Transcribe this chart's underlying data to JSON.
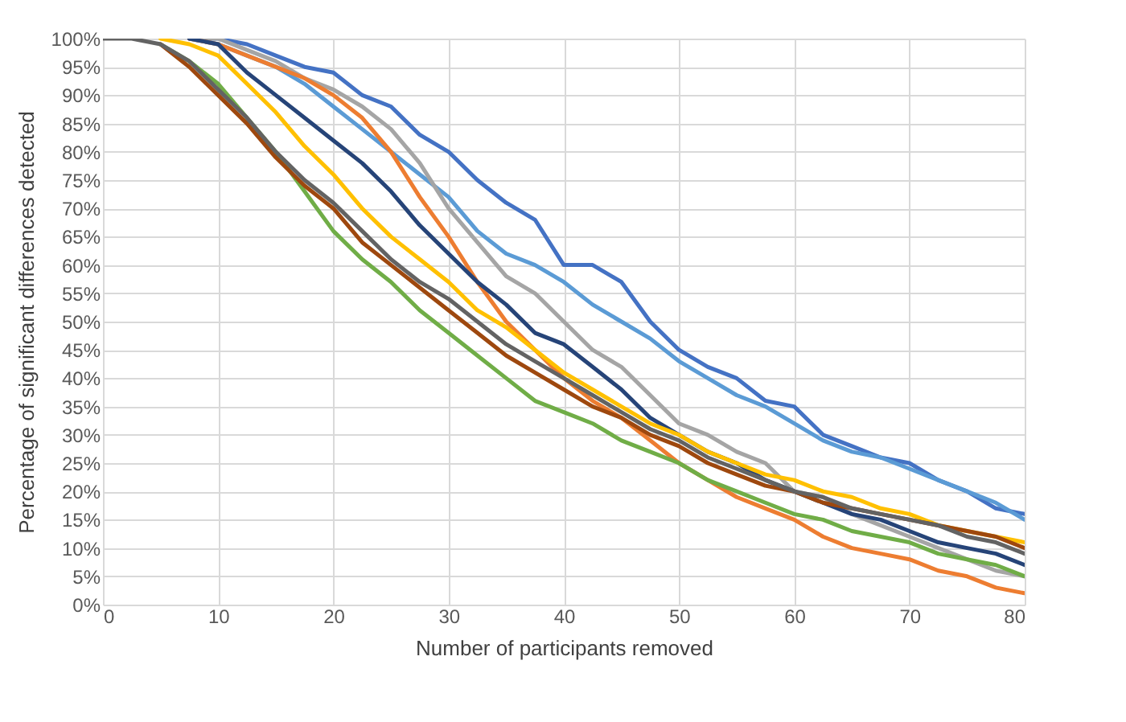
{
  "chart_data": {
    "type": "line",
    "xlabel": "Number of participants removed",
    "ylabel": "Percentage of significant differences detected",
    "x": [
      0,
      2.5,
      5,
      7.5,
      10,
      12.5,
      15,
      17.5,
      20,
      22.5,
      25,
      27.5,
      30,
      32.5,
      35,
      37.5,
      40,
      42.5,
      45,
      47.5,
      50,
      52.5,
      55,
      57.5,
      60,
      62.5,
      65,
      67.5,
      70,
      72.5,
      75,
      77.5,
      80
    ],
    "series": [
      {
        "color": "#4472c4",
        "values": [
          null,
          null,
          null,
          100,
          100,
          99,
          97,
          95,
          94,
          90,
          88,
          83,
          80,
          75,
          71,
          68,
          60,
          60,
          57,
          50,
          45,
          42,
          40,
          36,
          35,
          30,
          28,
          26,
          25,
          22,
          20,
          17,
          16
        ]
      },
      {
        "color": "#5b9bd5",
        "values": [
          null,
          null,
          null,
          100,
          99,
          97,
          95,
          92,
          88,
          84,
          80,
          76,
          72,
          66,
          62,
          60,
          57,
          53,
          50,
          47,
          43,
          40,
          37,
          35,
          32,
          29,
          27,
          26,
          24,
          22,
          20,
          18,
          15
        ]
      },
      {
        "color": "#a5a5a5",
        "values": [
          null,
          null,
          null,
          100,
          100,
          98,
          96,
          93,
          91,
          88,
          84,
          78,
          70,
          64,
          58,
          55,
          50,
          45,
          42,
          37,
          32,
          30,
          27,
          25,
          20,
          19,
          16,
          14,
          12,
          10,
          8,
          6,
          5
        ]
      },
      {
        "color": "#ed7d31",
        "values": [
          null,
          null,
          null,
          100,
          99,
          97,
          95,
          93,
          90,
          86,
          80,
          72,
          65,
          57,
          50,
          45,
          40,
          36,
          33,
          29,
          25,
          22,
          19,
          17,
          15,
          12,
          10,
          9,
          8,
          6,
          5,
          3,
          2
        ]
      },
      {
        "color": "#264478",
        "values": [
          null,
          null,
          null,
          100,
          99,
          94,
          90,
          86,
          82,
          78,
          73,
          67,
          62,
          57,
          53,
          48,
          46,
          42,
          38,
          33,
          30,
          27,
          25,
          22,
          20,
          18,
          16,
          15,
          13,
          11,
          10,
          9,
          7
        ]
      },
      {
        "color": "#ffc000",
        "values": [
          null,
          null,
          100,
          99,
          97,
          92,
          87,
          81,
          76,
          70,
          65,
          61,
          57,
          52,
          49,
          45,
          41,
          38,
          35,
          32,
          30,
          27,
          25,
          23,
          22,
          20,
          19,
          17,
          16,
          14,
          13,
          12,
          11
        ]
      },
      {
        "color": "#70ad47",
        "values": [
          null,
          null,
          99,
          96,
          92,
          86,
          80,
          73,
          66,
          61,
          57,
          52,
          48,
          44,
          40,
          36,
          34,
          32,
          29,
          27,
          25,
          22,
          20,
          18,
          16,
          15,
          13,
          12,
          11,
          9,
          8,
          7,
          5
        ]
      },
      {
        "color": "#9e480e",
        "values": [
          null,
          null,
          99,
          95,
          90,
          85,
          79,
          74,
          70,
          64,
          60,
          56,
          52,
          48,
          44,
          41,
          38,
          35,
          33,
          30,
          28,
          25,
          23,
          21,
          20,
          18,
          17,
          16,
          15,
          14,
          13,
          12,
          10
        ]
      },
      {
        "color": "#636363",
        "values": [
          100,
          100,
          99,
          96,
          91,
          86,
          80,
          75,
          71,
          66,
          61,
          57,
          54,
          50,
          46,
          43,
          40,
          37,
          34,
          31,
          29,
          26,
          24,
          22,
          20,
          19,
          17,
          16,
          15,
          14,
          12,
          11,
          9
        ]
      }
    ],
    "xlim": [
      0,
      80
    ],
    "xticks": [
      0,
      10,
      20,
      30,
      40,
      50,
      60,
      70,
      80
    ],
    "ylim": [
      0,
      100
    ],
    "yticks": [
      {
        "value": 0,
        "label": "0%"
      },
      {
        "value": 5,
        "label": "5%"
      },
      {
        "value": 10,
        "label": "10%"
      },
      {
        "value": 15,
        "label": "15%"
      },
      {
        "value": 20,
        "label": "20%"
      },
      {
        "value": 25,
        "label": "25%"
      },
      {
        "value": 30,
        "label": "30%"
      },
      {
        "value": 35,
        "label": "35%"
      },
      {
        "value": 40,
        "label": "40%"
      },
      {
        "value": 45,
        "label": "45%"
      },
      {
        "value": 50,
        "label": "50%"
      },
      {
        "value": 55,
        "label": "55%"
      },
      {
        "value": 60,
        "label": "60%"
      },
      {
        "value": 65,
        "label": "65%"
      },
      {
        "value": 70,
        "label": "70%"
      },
      {
        "value": 75,
        "label": "75%"
      },
      {
        "value": 80,
        "label": "80%"
      },
      {
        "value": 85,
        "label": "85%"
      },
      {
        "value": 90,
        "label": "90%"
      },
      {
        "value": 95,
        "label": "95%"
      },
      {
        "value": 100,
        "label": "100%"
      }
    ],
    "grid": true,
    "line_style": "solid",
    "marker": "none"
  }
}
